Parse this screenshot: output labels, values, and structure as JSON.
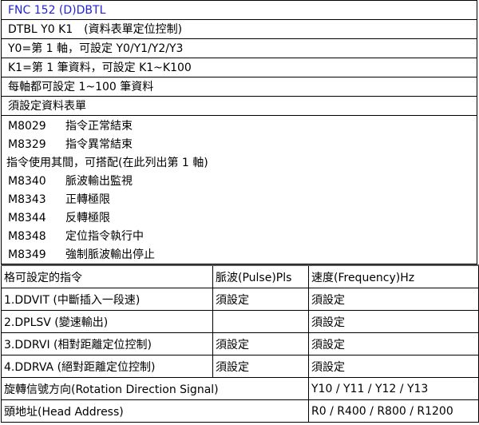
{
  "title": "FNC 152 (D)DBTL",
  "title_color": "#2222dd",
  "header_rows": [
    "DTBL Y0 K1　(資料表單定位控制)",
    "Y0=第 1 軸，可設定 Y0/Y1/Y2/Y3",
    "K1=第 1 筆資料，可設定 K1~K100",
    "每軸都可設定 1~100 筆資料",
    "須設定資料表單"
  ],
  "end_flags": [
    {
      "code": "M8029",
      "desc": "指令正常結束"
    },
    {
      "code": "M8329",
      "desc": "指令異常結束"
    }
  ],
  "usage_note": "指令使用其間，可搭配(在此列出第 1 軸)",
  "monitor_flags": [
    {
      "code": "M8340",
      "desc": "脈波輸出監視"
    },
    {
      "code": "M8343",
      "desc": "正轉極限"
    },
    {
      "code": "M8344",
      "desc": "反轉極限"
    },
    {
      "code": "M8348",
      "desc": "定位指令執行中"
    },
    {
      "code": "M8349",
      "desc": "強制脈波輸出停止"
    }
  ],
  "table": {
    "headers": [
      "格可設定的指令",
      "脈波(Pulse)Pls",
      "速度(Frequency)Hz"
    ],
    "rows": [
      [
        "1.DDVIT (中斷插入一段速)",
        "須設定",
        "須設定"
      ],
      [
        "2.DPLSV (變速輸出)",
        "",
        "須設定"
      ],
      [
        "3.DDRVI (相對距離定位控制)",
        "須設定",
        "須設定"
      ],
      [
        "4.DDRVA (絕對距離定位控制)",
        "須設定",
        "須設定"
      ]
    ],
    "rotation": {
      "label": "旋轉信號方向(Rotation Direction Signal)",
      "value": "Y10 / Y11 / Y12 / Y13"
    },
    "head_address": {
      "label": "頭地址(Head Address)",
      "value": "R0 / R400 / R800 / R1200"
    }
  }
}
